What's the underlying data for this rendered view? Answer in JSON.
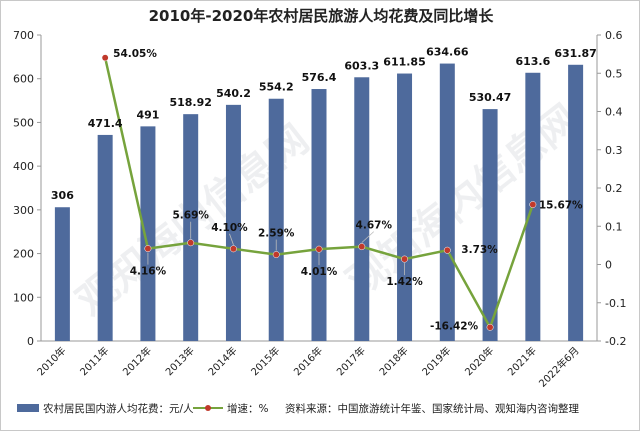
{
  "chart_data": {
    "type": "bar+line",
    "title": "2010年-2020年农村居民旅游人均花费及同比增长",
    "categories": [
      "2010年",
      "2011年",
      "2012年",
      "2013年",
      "2014年",
      "2015年",
      "2016年",
      "2017年",
      "2018年",
      "2019年",
      "2020年",
      "2021年",
      "2022年6月"
    ],
    "series": [
      {
        "name": "农村居民国内游人均花费：元/人",
        "type": "bar",
        "axis": "left",
        "color": "#4e6a9c",
        "values": [
          306,
          471.4,
          491,
          518.92,
          540.2,
          554.2,
          576.4,
          603.3,
          611.85,
          634.66,
          530.47,
          613.6,
          631.87
        ],
        "labels": [
          "306",
          "471.4",
          "491",
          "518.92",
          "540.2",
          "554.2",
          "576.4",
          "603.3",
          "611.85",
          "634.66",
          "530.47",
          "613.6",
          "631.87"
        ]
      },
      {
        "name": "增速：%",
        "type": "line",
        "axis": "right",
        "color": "#76a33c",
        "marker_color": "#c0392b",
        "values": [
          null,
          0.5405,
          0.0416,
          0.0569,
          0.041,
          0.0259,
          0.0401,
          0.0467,
          0.0142,
          0.0373,
          -0.1642,
          0.1567,
          null
        ],
        "labels": [
          null,
          "54.05%",
          "4.16%",
          "5.69%",
          "4.10%",
          "2.59%",
          "4.01%",
          "4.67%",
          "1.42%",
          "3.73%",
          "-16.42%",
          "15.67%",
          null
        ]
      }
    ],
    "y_left": {
      "min": 0,
      "max": 700,
      "step": 100,
      "ticks": [
        "0",
        "100",
        "200",
        "300",
        "400",
        "500",
        "600",
        "700"
      ]
    },
    "y_right": {
      "min": -0.2,
      "max": 0.6,
      "step": 0.1,
      "ticks": [
        "-0.2",
        "-0.1",
        "0",
        "0.1",
        "0.2",
        "0.3",
        "0.4",
        "0.5",
        "0.6"
      ]
    },
    "grid": false,
    "legend_position": "bottom-left",
    "source": "资料来源：中国旅游统计年鉴、国家统计局、观知海内咨询整理",
    "watermark": "观知海内信息网"
  }
}
